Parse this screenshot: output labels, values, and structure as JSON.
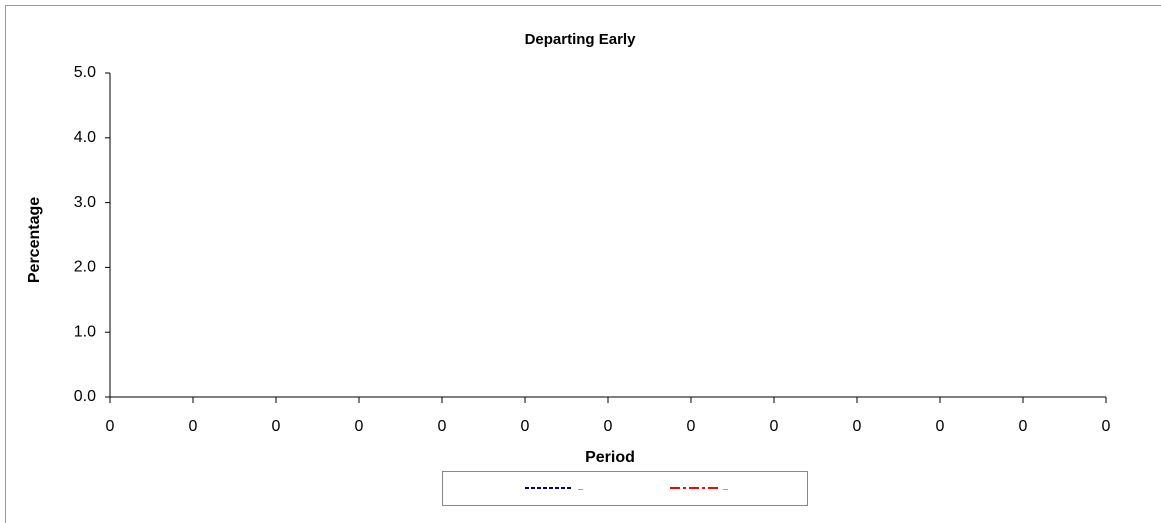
{
  "chart_data": {
    "type": "line",
    "title": "Departing Early",
    "x_label": "Period",
    "y_label": "Percentage",
    "categories": [
      "0",
      "0",
      "0",
      "0",
      "0",
      "0",
      "0",
      "0",
      "0",
      "0",
      "0",
      "0",
      "0"
    ],
    "series": [
      {
        "name": "–",
        "color": "#000080",
        "dash": "dashed",
        "values": [
          null,
          null,
          null,
          null,
          null,
          null,
          null,
          null,
          null,
          null,
          null,
          null,
          null
        ]
      },
      {
        "name": "–",
        "color": "#ff0000",
        "dash": "dashdot",
        "values": [
          null,
          null,
          null,
          null,
          null,
          null,
          null,
          null,
          null,
          null,
          null,
          null,
          null
        ]
      }
    ],
    "ylim": [
      0,
      5
    ],
    "yticks": [
      {
        "value": 0,
        "label": "0.0"
      },
      {
        "value": 1,
        "label": "1.0"
      },
      {
        "value": 2,
        "label": "2.0"
      },
      {
        "value": 3,
        "label": "3.0"
      },
      {
        "value": 4,
        "label": "4.0"
      },
      {
        "value": 5,
        "label": "5.0"
      }
    ],
    "grid": false,
    "legend": "bottom"
  }
}
